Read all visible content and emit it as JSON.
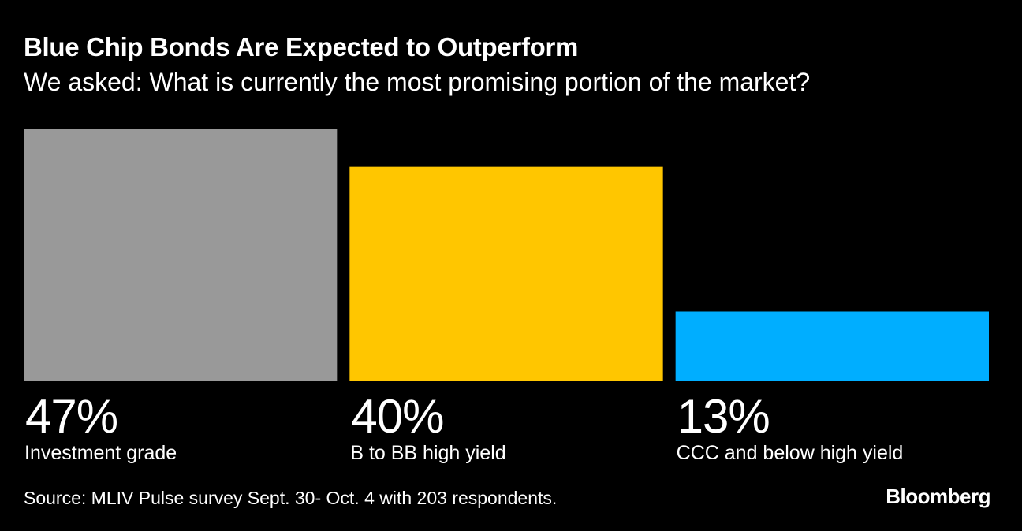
{
  "header": {
    "title": "Blue Chip Bonds Are Expected to Outperform",
    "subtitle": "We asked: What is currently the most promising portion of the market?"
  },
  "chart_data": {
    "type": "bar",
    "title": "Blue Chip Bonds Are Expected to Outperform",
    "subtitle": "We asked: What is currently the most promising portion of the market?",
    "categories": [
      "Investment grade",
      "B to BB high yield",
      "CCC and below high yield"
    ],
    "values": [
      47,
      40,
      13
    ],
    "value_labels": [
      "47%",
      "40%",
      "13%"
    ],
    "colors": [
      "#999999",
      "#FFC600",
      "#00AEFF"
    ],
    "unit": "%",
    "ylim": [
      0,
      47
    ],
    "grid": false,
    "legend": "none",
    "xlabel": "",
    "ylabel": ""
  },
  "footer": {
    "source": "Source: MLIV Pulse survey Sept. 30- Oct. 4 with 203 respondents.",
    "logo": "Bloomberg"
  }
}
